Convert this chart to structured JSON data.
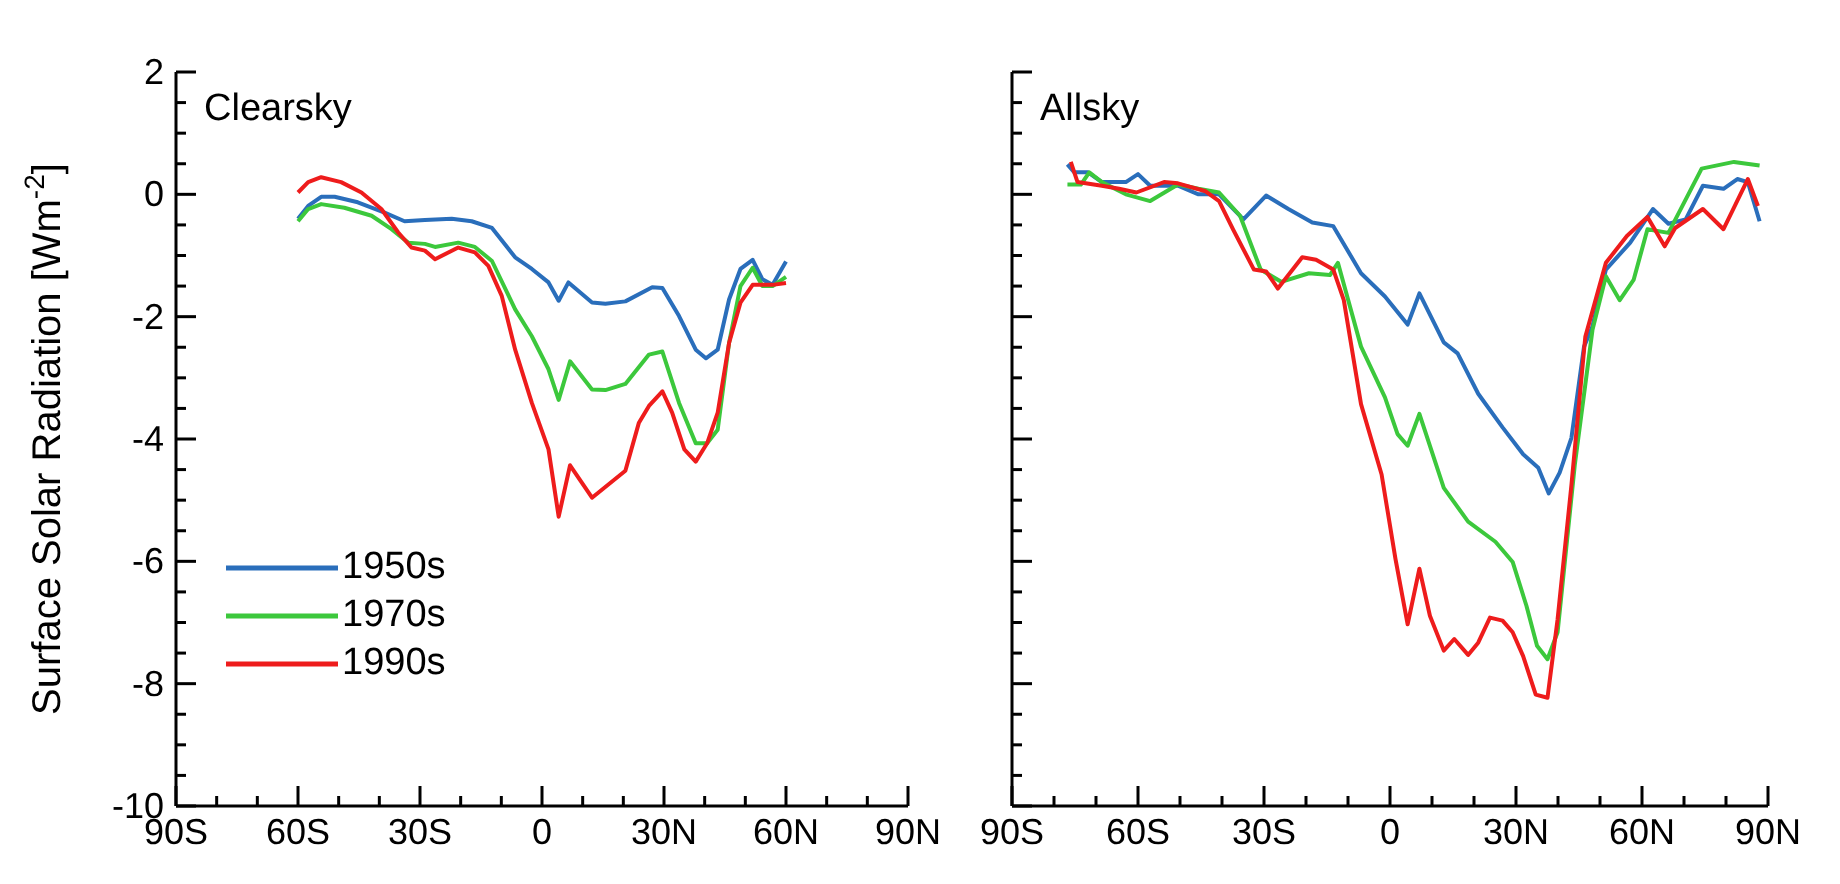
{
  "chart_data": [
    {
      "type": "line",
      "annotations": [
        "Clearsky"
      ],
      "ylabel": "Surface Solar Radiation [Wm$^{-2}$]",
      "legend": "bottom left",
      "line_style": "solid",
      "xlim": [
        -90,
        90
      ],
      "ylim": [
        -10,
        2
      ],
      "xticks": [
        {
          "value": -90,
          "label": "90S"
        },
        {
          "value": -80,
          "label": null
        },
        {
          "value": -70,
          "label": null
        },
        {
          "value": -60,
          "label": "60S"
        },
        {
          "value": -50,
          "label": null
        },
        {
          "value": -40,
          "label": null
        },
        {
          "value": -30,
          "label": "30S"
        },
        {
          "value": -20,
          "label": null
        },
        {
          "value": -10,
          "label": null
        },
        0,
        {
          "value": 10,
          "label": null
        },
        {
          "value": 20,
          "label": null
        },
        {
          "value": 30,
          "label": "30N"
        },
        {
          "value": 40,
          "label": null
        },
        {
          "value": 50,
          "label": null
        },
        {
          "value": 60,
          "label": "60N"
        },
        {
          "value": 70,
          "label": null
        },
        {
          "value": 80,
          "label": null
        },
        {
          "value": 90,
          "label": "90N"
        }
      ],
      "yticks": [
        2,
        {
          "value": 1.5,
          "label": null
        },
        {
          "value": 1,
          "label": null
        },
        {
          "value": 0.5,
          "label": null
        },
        0,
        {
          "value": -0.5,
          "label": null
        },
        {
          "value": -1,
          "label": null
        },
        {
          "value": -1.5,
          "label": null
        },
        -2,
        {
          "value": -2.5,
          "label": null
        },
        {
          "value": -3,
          "label": null
        },
        {
          "value": -3.5,
          "label": null
        },
        -4,
        {
          "value": -4.5,
          "label": null
        },
        {
          "value": -5,
          "label": null
        },
        {
          "value": -5.5,
          "label": null
        },
        -6,
        {
          "value": -6.5,
          "label": null
        },
        {
          "value": -7,
          "label": null
        },
        {
          "value": -7.5,
          "label": null
        },
        -8,
        {
          "value": -8.5,
          "label": null
        },
        {
          "value": -9,
          "label": null
        },
        {
          "value": -9.5,
          "label": null
        },
        -10
      ],
      "series": [
        {
          "name": "1950s",
          "color": "#2a6ebb",
          "x": [
            -60,
            -57.5,
            -54.3,
            -51,
            -45.3,
            -38.7,
            -33.8,
            -28.8,
            -22.2,
            -17.3,
            -12.3,
            -6.6,
            -2.5,
            1.6,
            4.1,
            6.5,
            12.3,
            15.6,
            20.5,
            27.1,
            29.6,
            33.7,
            37.8,
            40.3,
            43.2,
            46,
            48.8,
            51.8,
            54.2,
            56.7,
            60
          ],
          "values": [
            -0.4,
            -0.19,
            -0.04,
            -0.04,
            -0.13,
            -0.3,
            -0.44,
            -0.42,
            -0.4,
            -0.44,
            -0.55,
            -1.03,
            -1.22,
            -1.44,
            -1.74,
            -1.44,
            -1.77,
            -1.79,
            -1.75,
            -1.52,
            -1.53,
            -1.99,
            -2.54,
            -2.68,
            -2.54,
            -1.72,
            -1.22,
            -1.07,
            -1.39,
            -1.48,
            -1.1
          ]
        },
        {
          "name": "1970s",
          "color": "#3cc83c",
          "x": [
            -60,
            -57.5,
            -54.3,
            -48.6,
            -41.9,
            -37,
            -32.9,
            -28.8,
            -26.3,
            -20.6,
            -16.5,
            -12.3,
            -6.6,
            -2.5,
            1.6,
            4.1,
            6.9,
            12.3,
            15.6,
            20.5,
            26.3,
            29.6,
            33.7,
            37.8,
            40.6,
            43.2,
            46,
            48.8,
            51.8,
            54.2,
            56.7,
            60
          ],
          "values": [
            -0.44,
            -0.24,
            -0.16,
            -0.22,
            -0.35,
            -0.57,
            -0.79,
            -0.81,
            -0.86,
            -0.79,
            -0.86,
            -1.09,
            -1.88,
            -2.32,
            -2.86,
            -3.36,
            -2.73,
            -3.19,
            -3.2,
            -3.1,
            -2.62,
            -2.57,
            -3.41,
            -4.07,
            -4.07,
            -3.85,
            -2.43,
            -1.5,
            -1.2,
            -1.5,
            -1.5,
            -1.35
          ]
        },
        {
          "name": "1990s",
          "color": "#ee1c1c",
          "x": [
            -60,
            -57.5,
            -54.3,
            -49.4,
            -44.4,
            -39.5,
            -35.4,
            -32.1,
            -28.8,
            -26.3,
            -20.6,
            -16.5,
            -13.2,
            -9.9,
            -6.6,
            -2.5,
            1.6,
            4.1,
            6.9,
            12.3,
            20.5,
            23.8,
            26.3,
            29.6,
            32,
            35,
            37.8,
            40.6,
            43.2,
            46,
            48.8,
            51.8,
            56.7,
            60
          ],
          "values": [
            0.03,
            0.2,
            0.28,
            0.2,
            0.03,
            -0.24,
            -0.62,
            -0.87,
            -0.92,
            -1.06,
            -0.87,
            -0.95,
            -1.17,
            -1.66,
            -2.54,
            -3.41,
            -4.17,
            -5.27,
            -4.43,
            -4.96,
            -4.52,
            -3.74,
            -3.46,
            -3.22,
            -3.57,
            -4.17,
            -4.37,
            -4.07,
            -3.57,
            -2.43,
            -1.77,
            -1.48,
            -1.48,
            -1.45
          ]
        }
      ]
    },
    {
      "type": "line",
      "annotations": [
        "Allsky"
      ],
      "line_style": "solid",
      "tick_labels": "x",
      "xlim": [
        -90,
        90
      ],
      "ylim": [
        -10,
        2
      ],
      "xticks": [
        {
          "value": -90,
          "label": "90S"
        },
        {
          "value": -80,
          "label": null
        },
        {
          "value": -70,
          "label": null
        },
        {
          "value": -60,
          "label": "60S"
        },
        {
          "value": -50,
          "label": null
        },
        {
          "value": -40,
          "label": null
        },
        {
          "value": -30,
          "label": "30S"
        },
        {
          "value": -20,
          "label": null
        },
        {
          "value": -10,
          "label": null
        },
        0,
        {
          "value": 10,
          "label": null
        },
        {
          "value": 20,
          "label": null
        },
        {
          "value": 30,
          "label": "30N"
        },
        {
          "value": 40,
          "label": null
        },
        {
          "value": 50,
          "label": null
        },
        {
          "value": 60,
          "label": "60N"
        },
        {
          "value": 70,
          "label": null
        },
        {
          "value": 80,
          "label": null
        },
        {
          "value": 90,
          "label": "90N"
        }
      ],
      "yticks": [
        2,
        {
          "value": 1.5,
          "label": null
        },
        {
          "value": 1,
          "label": null
        },
        {
          "value": 0.5,
          "label": null
        },
        0,
        {
          "value": -0.5,
          "label": null
        },
        {
          "value": -1,
          "label": null
        },
        {
          "value": -1.5,
          "label": null
        },
        -2,
        {
          "value": -2.5,
          "label": null
        },
        {
          "value": -3,
          "label": null
        },
        {
          "value": -3.5,
          "label": null
        },
        -4,
        {
          "value": -4.5,
          "label": null
        },
        {
          "value": -5,
          "label": null
        },
        {
          "value": -5.5,
          "label": null
        },
        -6,
        {
          "value": -6.5,
          "label": null
        },
        {
          "value": -7,
          "label": null
        },
        {
          "value": -7.5,
          "label": null
        },
        -8,
        {
          "value": -8.5,
          "label": null
        },
        {
          "value": -9,
          "label": null
        },
        {
          "value": -9.5,
          "label": null
        },
        -10
      ],
      "series": [
        {
          "color": "#2a6ebb",
          "x": [
            -76.8,
            -75.2,
            -71.9,
            -68.6,
            -62.9,
            -60,
            -57.1,
            -50.5,
            -45.6,
            -40.7,
            -34.9,
            -29.5,
            -24.2,
            -18.5,
            -13.5,
            -6.9,
            -1.2,
            4.2,
            7,
            12.8,
            16.1,
            21,
            26.8,
            31.7,
            35.3,
            37.8,
            40.4,
            43.2,
            46.2,
            48.2,
            51.4,
            57.2,
            62.6,
            66.3,
            70.4,
            74.5,
            79.4,
            82.7,
            85.2,
            88
          ],
          "values": [
            0.49,
            0.36,
            0.36,
            0.2,
            0.2,
            0.33,
            0.14,
            0.14,
            0,
            0,
            -0.41,
            -0.02,
            -0.24,
            -0.46,
            -0.52,
            -1.29,
            -1.67,
            -2.13,
            -1.62,
            -2.42,
            -2.6,
            -3.26,
            -3.81,
            -4.25,
            -4.47,
            -4.89,
            -4.55,
            -3.98,
            -2.49,
            -2.16,
            -1.23,
            -0.79,
            -0.24,
            -0.48,
            -0.41,
            0.14,
            0.09,
            0.25,
            0.2,
            -0.44
          ]
        },
        {
          "color": "#3cc83c",
          "x": [
            -76.8,
            -73.6,
            -71.6,
            -68.6,
            -62.9,
            -57.1,
            -50.5,
            -45.6,
            -40.7,
            -35.7,
            -30.8,
            -25.9,
            -19.3,
            -14.3,
            -12.4,
            -6.9,
            -1.2,
            1.8,
            4.2,
            7,
            12.8,
            18.6,
            25.1,
            29.2,
            32.5,
            35,
            37.5,
            39.9,
            44,
            48.2,
            51.4,
            54.7,
            58,
            61.3,
            66.3,
            74.2,
            81.9,
            88
          ],
          "values": [
            0.16,
            0.16,
            0.36,
            0.2,
            0,
            -0.11,
            0.16,
            0.09,
            0.03,
            -0.35,
            -1.23,
            -1.43,
            -1.29,
            -1.32,
            -1.12,
            -2.49,
            -3.32,
            -3.92,
            -4.11,
            -3.59,
            -4.8,
            -5.35,
            -5.68,
            -6.01,
            -6.73,
            -7.38,
            -7.6,
            -7.16,
            -4.42,
            -2.22,
            -1.34,
            -1.73,
            -1.4,
            -0.57,
            -0.63,
            0.42,
            0.53,
            0.47
          ]
        },
        {
          "color": "#ee1c1c",
          "x": [
            -76,
            -74.4,
            -68.6,
            -64.5,
            -60.4,
            -53.8,
            -50.5,
            -43.9,
            -40.7,
            -37.4,
            -32.4,
            -29.5,
            -26.7,
            -20.9,
            -17.6,
            -13.5,
            -11,
            -6.9,
            -2,
            1.3,
            4.2,
            7,
            9.5,
            12.8,
            15.3,
            18.6,
            21,
            23.8,
            26.8,
            29.2,
            31.7,
            34.7,
            37.5,
            39.9,
            43.2,
            46.5,
            51.4,
            56.4,
            61.3,
            65.4,
            67.9,
            74.5,
            79.4,
            85.2,
            87.6
          ],
          "values": [
            0.53,
            0.2,
            0.14,
            0.09,
            0.03,
            0.2,
            0.18,
            0.05,
            -0.11,
            -0.57,
            -1.23,
            -1.26,
            -1.54,
            -1.03,
            -1.07,
            -1.23,
            -1.73,
            -3.43,
            -4.58,
            -5.96,
            -7.03,
            -6.12,
            -6.89,
            -7.46,
            -7.27,
            -7.53,
            -7.33,
            -6.92,
            -6.97,
            -7.16,
            -7.55,
            -8.18,
            -8.23,
            -6.95,
            -4.75,
            -2.33,
            -1.12,
            -0.68,
            -0.37,
            -0.85,
            -0.55,
            -0.24,
            -0.57,
            0.25,
            -0.19
          ]
        }
      ]
    }
  ]
}
